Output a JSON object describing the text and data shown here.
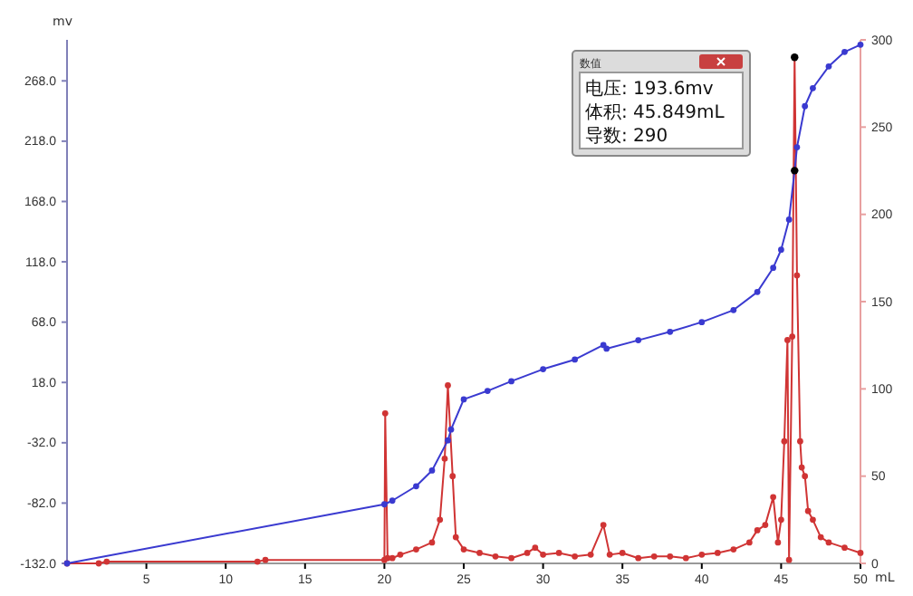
{
  "chart_data": {
    "type": "line",
    "xlabel": "mL",
    "ylabel": "mv",
    "xlim": [
      0,
      50
    ],
    "xticks": [
      5,
      10,
      15,
      20,
      25,
      30,
      35,
      40,
      45,
      50
    ],
    "ylim": [
      -132,
      302
    ],
    "yticks": [
      {
        "value": -132,
        "label": "-132.0"
      },
      {
        "value": -82,
        "label": "-82.0"
      },
      {
        "value": -32,
        "label": "-32.0"
      },
      {
        "value": 18,
        "label": "18.0"
      },
      {
        "value": 68,
        "label": "68.0"
      },
      {
        "value": 118,
        "label": "118.0"
      },
      {
        "value": 168,
        "label": "168.0"
      },
      {
        "value": 218,
        "label": "218.0"
      },
      {
        "value": 268,
        "label": "268.0"
      }
    ],
    "y2lim": [
      0,
      300
    ],
    "y2ticks": [
      0,
      50,
      100,
      150,
      200,
      250,
      300
    ],
    "grid": false,
    "marker": "circle",
    "line_style": "solid",
    "series": [
      {
        "color": "#3a3ad0",
        "x": [
          0,
          20,
          20.5,
          22,
          23,
          24,
          24.2,
          25,
          26.5,
          28,
          30,
          32,
          33.8,
          34,
          36,
          38,
          40,
          42,
          43.5,
          44.5,
          45,
          45.5,
          45.849,
          46,
          46.5,
          47,
          48,
          49,
          50
        ],
        "values": [
          -132,
          -83,
          -80,
          -68,
          -55,
          -30,
          -21,
          4,
          11,
          19,
          29,
          37,
          49,
          46,
          53,
          60,
          68,
          78,
          93,
          113,
          128,
          153,
          193.6,
          213,
          247,
          262,
          280,
          292,
          298
        ]
      },
      {
        "axis": "y2",
        "color": "#d03434",
        "x": [
          0,
          2,
          2.5,
          12,
          12.5,
          20,
          20.05,
          20.2,
          20.5,
          21,
          22,
          23,
          23.5,
          23.8,
          24,
          24.3,
          24.5,
          25,
          26,
          27,
          28,
          29,
          29.5,
          30,
          31,
          32,
          33,
          33.8,
          34.2,
          35,
          36,
          37,
          38,
          39,
          40,
          41,
          42,
          43,
          43.5,
          44,
          44.5,
          44.8,
          45,
          45.2,
          45.4,
          45.5,
          45.7,
          45.849,
          46,
          46.2,
          46.3,
          46.5,
          46.7,
          47,
          47.5,
          48,
          49,
          50
        ],
        "values": [
          0,
          0,
          1,
          1,
          2,
          2,
          86,
          3,
          3,
          5,
          8,
          12,
          25,
          60,
          102,
          50,
          15,
          8,
          6,
          4,
          3,
          6,
          9,
          5,
          6,
          4,
          5,
          22,
          5,
          6,
          3,
          4,
          4,
          3,
          5,
          6,
          8,
          12,
          19,
          22,
          38,
          12,
          25,
          70,
          128,
          2,
          130,
          290,
          165,
          70,
          55,
          50,
          30,
          25,
          15,
          12,
          9,
          6
        ]
      },
      {
        "type": "scatter",
        "color": "#000000",
        "x": [
          45.849
        ],
        "values": [
          193.6
        ]
      },
      {
        "type": "scatter",
        "axis": "y2",
        "color": "#000000",
        "x": [
          45.849
        ],
        "values": [
          290
        ]
      }
    ],
    "annotations": [
      "数值",
      "电压: 193.6mv",
      "体积: 45.849mL",
      "导数: 290"
    ]
  }
}
